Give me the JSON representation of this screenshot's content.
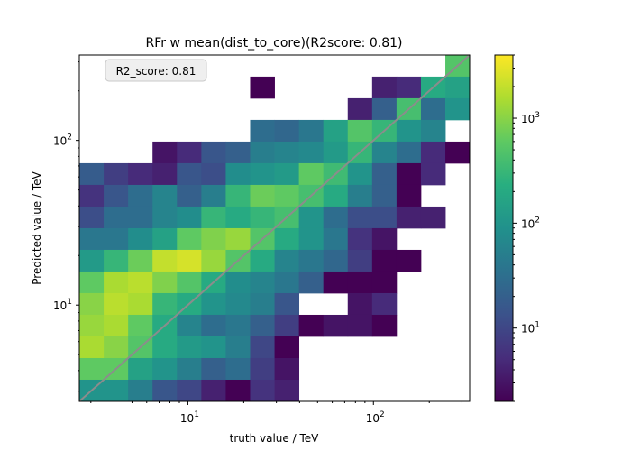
{
  "chart_data": {
    "type": "heatmap",
    "title": "RFr w mean(dist_to_core)(R2score: 0.81)",
    "xlabel": "truth value / TeV",
    "ylabel": "Predicted value / TeV",
    "xscale": "log",
    "yscale": "log",
    "xlim": [
      2.6,
      330
    ],
    "ylim": [
      2.6,
      330
    ],
    "x_ticks": [
      {
        "value": 10,
        "mantissa": "10",
        "exp": "1"
      },
      {
        "value": 100,
        "mantissa": "10",
        "exp": "2"
      }
    ],
    "y_ticks": [
      {
        "value": 10,
        "mantissa": "10",
        "exp": "1"
      },
      {
        "value": 100,
        "mantissa": "10",
        "exp": "2"
      }
    ],
    "annotation": "R2_score: 0.81",
    "diagonal": {
      "from": [
        2.6,
        2.6
      ],
      "to": [
        330,
        330
      ],
      "color": "#8c8c8c"
    },
    "colorbar": {
      "scale": "log",
      "range": [
        2,
        4000
      ],
      "colormap": "viridis",
      "ticks": [
        {
          "value": 10,
          "mantissa": "10",
          "exp": "1"
        },
        {
          "value": 100,
          "mantissa": "10",
          "exp": "2"
        },
        {
          "value": 1000,
          "mantissa": "10",
          "exp": "3"
        }
      ]
    },
    "bins": {
      "n": 16,
      "edges_log10": [
        0.415,
        2.519
      ],
      "grid_top_to_bottom": [
        [
          null,
          null,
          null,
          null,
          null,
          null,
          null,
          null,
          null,
          null,
          null,
          null,
          null,
          null,
          null,
          500
        ],
        [
          null,
          null,
          null,
          null,
          null,
          null,
          null,
          2,
          null,
          null,
          null,
          null,
          4,
          5,
          200,
          150
        ],
        [
          null,
          null,
          null,
          null,
          null,
          null,
          null,
          null,
          null,
          null,
          null,
          4,
          20,
          400,
          30,
          100
        ],
        [
          null,
          null,
          null,
          null,
          null,
          null,
          null,
          30,
          25,
          40,
          150,
          500,
          300,
          100,
          60,
          null
        ],
        [
          null,
          null,
          null,
          3,
          5,
          15,
          20,
          50,
          60,
          70,
          120,
          300,
          60,
          30,
          5,
          2
        ],
        [
          18,
          8,
          5,
          4,
          15,
          12,
          80,
          100,
          120,
          600,
          350,
          100,
          20,
          2,
          5,
          null
        ],
        [
          6,
          15,
          30,
          60,
          20,
          50,
          300,
          700,
          600,
          400,
          200,
          50,
          20,
          2,
          null,
          null
        ],
        [
          12,
          30,
          30,
          60,
          80,
          300,
          200,
          300,
          400,
          100,
          30,
          12,
          12,
          4,
          4,
          null
        ],
        [
          40,
          40,
          80,
          150,
          600,
          900,
          1200,
          500,
          200,
          100,
          40,
          6,
          3,
          null,
          null,
          null
        ],
        [
          120,
          300,
          700,
          2000,
          2500,
          1200,
          500,
          200,
          60,
          40,
          25,
          8,
          2,
          2,
          null,
          null
        ],
        [
          600,
          1500,
          1800,
          900,
          500,
          200,
          80,
          60,
          40,
          20,
          2,
          2,
          2,
          null,
          null,
          null
        ],
        [
          1000,
          1800,
          1500,
          300,
          200,
          100,
          70,
          50,
          15,
          null,
          null,
          3,
          5,
          null,
          null,
          null
        ],
        [
          1200,
          1500,
          600,
          200,
          60,
          30,
          40,
          20,
          8,
          2,
          3,
          3,
          2,
          null,
          null,
          null
        ],
        [
          1500,
          1000,
          500,
          200,
          120,
          100,
          50,
          10,
          2,
          null,
          null,
          null,
          null,
          null,
          null,
          null
        ],
        [
          600,
          600,
          150,
          100,
          50,
          20,
          30,
          8,
          3,
          null,
          null,
          null,
          null,
          null,
          null,
          null
        ],
        [
          100,
          100,
          50,
          15,
          10,
          4,
          2,
          6,
          4,
          null,
          null,
          null,
          null,
          null,
          null,
          null
        ]
      ]
    }
  }
}
